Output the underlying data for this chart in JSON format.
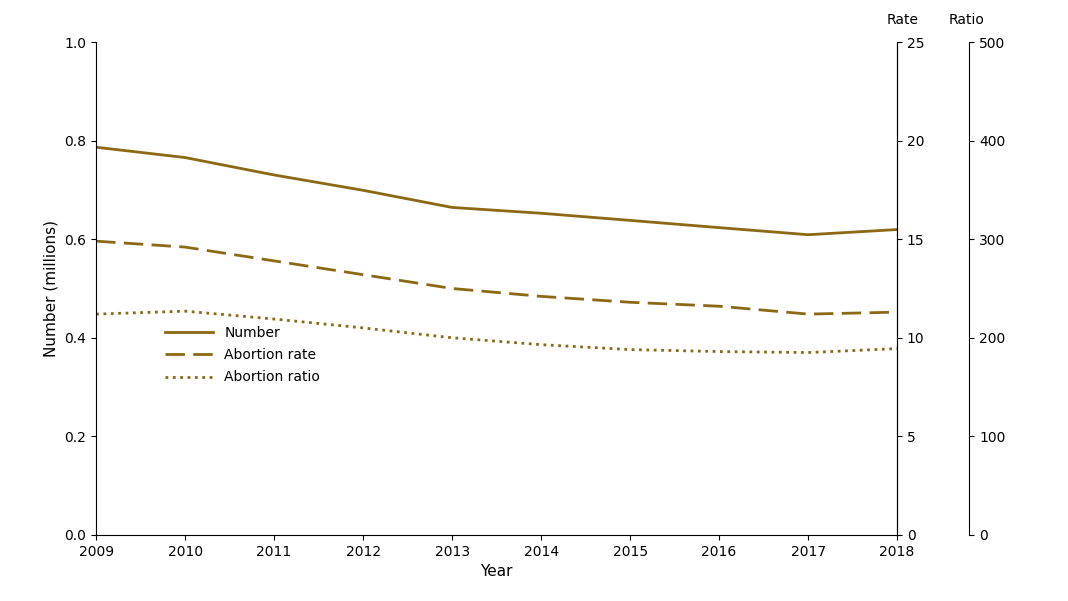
{
  "years": [
    2009,
    2010,
    2011,
    2012,
    2013,
    2014,
    2015,
    2016,
    2017,
    2018
  ],
  "number_millions": [
    0.786621,
    0.765651,
    0.730322,
    0.699202,
    0.664435,
    0.652639,
    0.638169,
    0.623471,
    0.609095,
    0.619591
  ],
  "abortion_rate": [
    14.9,
    14.6,
    13.9,
    13.2,
    12.5,
    12.1,
    11.8,
    11.6,
    11.2,
    11.3
  ],
  "abortion_ratio": [
    224,
    227,
    219,
    210,
    200,
    193,
    188,
    186,
    185,
    189
  ],
  "line_color": "#8B6914",
  "ylabel_left": "Number (millions)",
  "xlabel": "Year",
  "ylim_left": [
    0.0,
    1.0
  ],
  "ylim_rate": [
    0,
    25
  ],
  "ylim_ratio": [
    0,
    500
  ],
  "rate_label": "Rate",
  "ratio_label": "Ratio",
  "legend_number": "Number",
  "legend_rate": "Abortion rate",
  "legend_ratio": "Abortion ratio",
  "yticks_left": [
    0.0,
    0.2,
    0.4,
    0.6,
    0.8,
    1.0
  ],
  "yticks_rate": [
    0,
    5,
    10,
    15,
    20,
    25
  ],
  "yticks_ratio": [
    0,
    100,
    200,
    300,
    400,
    500
  ]
}
